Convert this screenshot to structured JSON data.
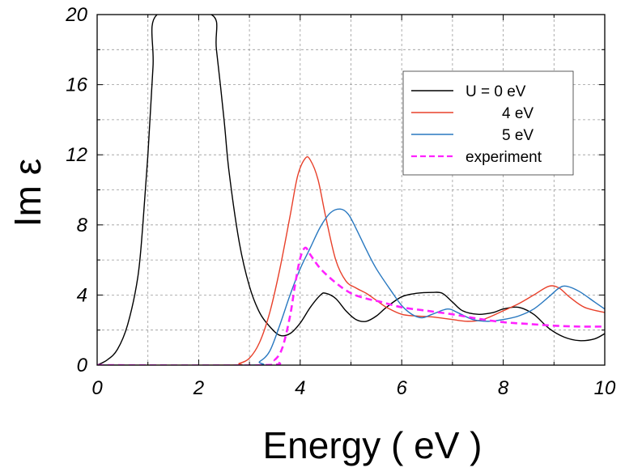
{
  "chart_data": {
    "type": "line",
    "xlabel": "Energy ( eV )",
    "ylabel": "Im ε",
    "xlim": [
      0,
      10
    ],
    "ylim": [
      0,
      20
    ],
    "xticks": [
      0,
      2,
      4,
      6,
      8,
      10
    ],
    "yticks": [
      0,
      4,
      8,
      12,
      16,
      20
    ],
    "grid": true,
    "legend_position": "upper-right",
    "series": [
      {
        "name": "U = 0 eV",
        "color": "#000000",
        "dash": false,
        "points": [
          [
            0,
            0
          ],
          [
            0.2,
            0.3
          ],
          [
            0.4,
            0.9
          ],
          [
            0.6,
            2.3
          ],
          [
            0.8,
            5
          ],
          [
            0.9,
            8
          ],
          [
            1.0,
            12
          ],
          [
            1.1,
            17
          ],
          [
            1.18,
            20
          ],
          [
            2.25,
            20
          ],
          [
            2.35,
            18
          ],
          [
            2.5,
            14
          ],
          [
            2.6,
            11
          ],
          [
            2.8,
            7
          ],
          [
            3.0,
            4.5
          ],
          [
            3.2,
            3
          ],
          [
            3.4,
            2.2
          ],
          [
            3.6,
            1.7
          ],
          [
            3.8,
            1.8
          ],
          [
            4.0,
            2.4
          ],
          [
            4.2,
            3.3
          ],
          [
            4.4,
            4
          ],
          [
            4.5,
            4.1
          ],
          [
            4.7,
            3.8
          ],
          [
            4.9,
            3.1
          ],
          [
            5.1,
            2.6
          ],
          [
            5.3,
            2.5
          ],
          [
            5.5,
            2.8
          ],
          [
            5.7,
            3.3
          ],
          [
            6.0,
            3.9
          ],
          [
            6.3,
            4.1
          ],
          [
            6.6,
            4.15
          ],
          [
            6.8,
            4.1
          ],
          [
            7.0,
            3.6
          ],
          [
            7.2,
            3.1
          ],
          [
            7.5,
            2.9
          ],
          [
            7.8,
            3.0
          ],
          [
            8.0,
            3.2
          ],
          [
            8.3,
            3.3
          ],
          [
            8.6,
            2.9
          ],
          [
            8.9,
            2.1
          ],
          [
            9.2,
            1.6
          ],
          [
            9.5,
            1.4
          ],
          [
            9.8,
            1.5
          ],
          [
            10,
            1.8
          ]
        ]
      },
      {
        "name": "4 eV",
        "color": "#e8402a",
        "dash": false,
        "points": [
          [
            0,
            0
          ],
          [
            2.6,
            0
          ],
          [
            2.8,
            0.1
          ],
          [
            3.0,
            0.4
          ],
          [
            3.2,
            1.3
          ],
          [
            3.4,
            3
          ],
          [
            3.6,
            5.5
          ],
          [
            3.8,
            8.5
          ],
          [
            3.95,
            10.8
          ],
          [
            4.1,
            11.8
          ],
          [
            4.2,
            11.7
          ],
          [
            4.35,
            10.6
          ],
          [
            4.5,
            8.5
          ],
          [
            4.7,
            6
          ],
          [
            4.9,
            4.8
          ],
          [
            5.1,
            4.4
          ],
          [
            5.3,
            4.1
          ],
          [
            5.5,
            3.7
          ],
          [
            5.7,
            3.3
          ],
          [
            6.0,
            2.9
          ],
          [
            6.3,
            2.8
          ],
          [
            6.6,
            2.75
          ],
          [
            7.0,
            2.6
          ],
          [
            7.3,
            2.5
          ],
          [
            7.6,
            2.6
          ],
          [
            8.0,
            3.1
          ],
          [
            8.3,
            3.5
          ],
          [
            8.6,
            4.0
          ],
          [
            8.9,
            4.5
          ],
          [
            9.1,
            4.4
          ],
          [
            9.3,
            3.9
          ],
          [
            9.6,
            3.3
          ],
          [
            10,
            3.0
          ]
        ]
      },
      {
        "name": "5 eV",
        "color": "#2878c0",
        "dash": false,
        "points": [
          [
            0,
            0
          ],
          [
            3.0,
            0
          ],
          [
            3.2,
            0.2
          ],
          [
            3.4,
            0.8
          ],
          [
            3.6,
            2.3
          ],
          [
            3.8,
            4
          ],
          [
            4.0,
            5.5
          ],
          [
            4.2,
            6.7
          ],
          [
            4.4,
            7.9
          ],
          [
            4.6,
            8.7
          ],
          [
            4.8,
            8.9
          ],
          [
            4.95,
            8.6
          ],
          [
            5.1,
            7.8
          ],
          [
            5.3,
            6.6
          ],
          [
            5.5,
            5.5
          ],
          [
            5.8,
            4.2
          ],
          [
            6.0,
            3.4
          ],
          [
            6.2,
            2.9
          ],
          [
            6.4,
            2.7
          ],
          [
            6.6,
            2.9
          ],
          [
            6.9,
            3.2
          ],
          [
            7.1,
            3.0
          ],
          [
            7.4,
            2.6
          ],
          [
            7.7,
            2.5
          ],
          [
            8.0,
            2.6
          ],
          [
            8.3,
            2.8
          ],
          [
            8.6,
            3.2
          ],
          [
            8.9,
            3.9
          ],
          [
            9.1,
            4.4
          ],
          [
            9.25,
            4.5
          ],
          [
            9.5,
            4.2
          ],
          [
            9.8,
            3.6
          ],
          [
            10,
            3.2
          ]
        ]
      },
      {
        "name": "experiment",
        "color": "#ff22ff",
        "dash": true,
        "points": [
          [
            0,
            0
          ],
          [
            3.3,
            0
          ],
          [
            3.5,
            0.3
          ],
          [
            3.65,
            1
          ],
          [
            3.8,
            2.8
          ],
          [
            3.9,
            4.6
          ],
          [
            4.0,
            6.1
          ],
          [
            4.1,
            6.7
          ],
          [
            4.2,
            6.3
          ],
          [
            4.4,
            5.5
          ],
          [
            4.7,
            4.7
          ],
          [
            5.0,
            4.1
          ],
          [
            5.3,
            3.8
          ],
          [
            5.6,
            3.6
          ],
          [
            6.0,
            3.3
          ],
          [
            6.5,
            3.1
          ],
          [
            7.0,
            2.9
          ],
          [
            7.5,
            2.65
          ],
          [
            8.0,
            2.45
          ],
          [
            8.5,
            2.35
          ],
          [
            9.0,
            2.25
          ],
          [
            9.5,
            2.2
          ],
          [
            10,
            2.2
          ]
        ]
      }
    ]
  }
}
